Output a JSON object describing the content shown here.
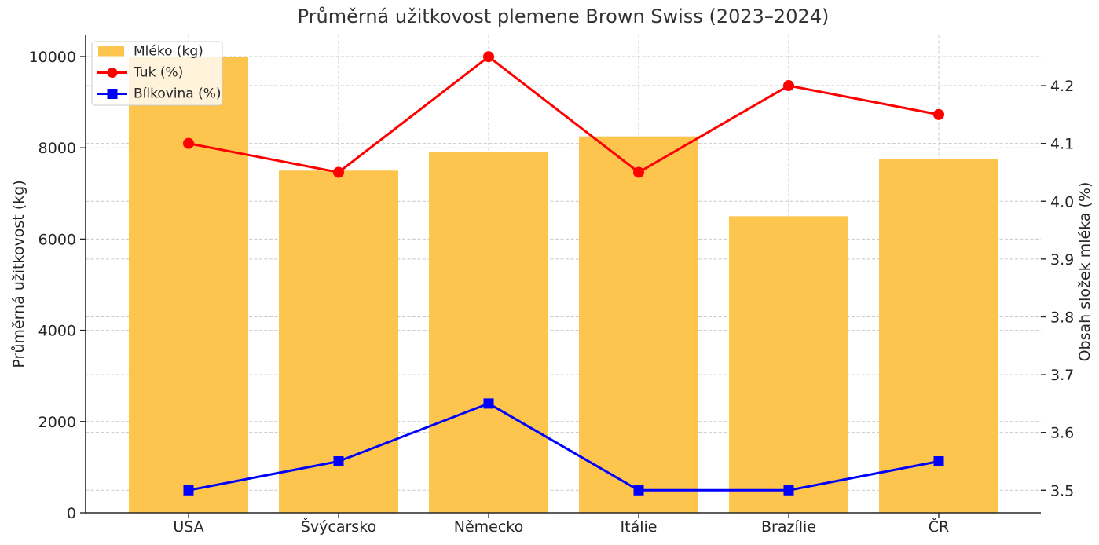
{
  "figure": {
    "background": "#ffffff"
  },
  "chart_data": {
    "type": "bar",
    "subtype": "combo-bar-with-two-lines-dual-axis",
    "title": "Průměrná užitkovost plemene Brown Swiss (2023–2024)",
    "categories": [
      "USA",
      "Švýcarsko",
      "Německo",
      "Itálie",
      "Brazílie",
      "ČR"
    ],
    "series": [
      {
        "name": "Mléko (kg)",
        "type": "bar",
        "axis": "left",
        "color": "#FDC44E",
        "values": [
          10000,
          7500,
          7900,
          8250,
          6500,
          7750
        ]
      },
      {
        "name": "Tuk (%)",
        "type": "line",
        "axis": "right",
        "color": "#FF0000",
        "marker": "circle",
        "values": [
          4.1,
          4.05,
          4.25,
          4.05,
          4.2,
          4.15
        ]
      },
      {
        "name": "Bílkovina (%)",
        "type": "line",
        "axis": "right",
        "color": "#0000FF",
        "marker": "square",
        "values": [
          3.5,
          3.55,
          3.65,
          3.5,
          3.5,
          3.55
        ]
      }
    ],
    "left_axis": {
      "label": "Průměrná užitkovost (kg)",
      "ticks": [
        0,
        2000,
        4000,
        6000,
        8000,
        10000
      ],
      "lim": [
        0,
        10465
      ]
    },
    "right_axis": {
      "label": "Obsah složek mléka (%)",
      "ticks": [
        3.5,
        3.6,
        3.7,
        3.8,
        3.9,
        4.0,
        4.1,
        4.2
      ],
      "lim": [
        3.461,
        4.287
      ]
    },
    "grid": true,
    "grid_style": "dashed",
    "grid_color": "#C9C9C9",
    "spine_color": "#262626",
    "text_color": "#262626",
    "legend_position": "upper left",
    "legend_background": "#FFFFFF",
    "legend_border": "#CCCCCC"
  }
}
